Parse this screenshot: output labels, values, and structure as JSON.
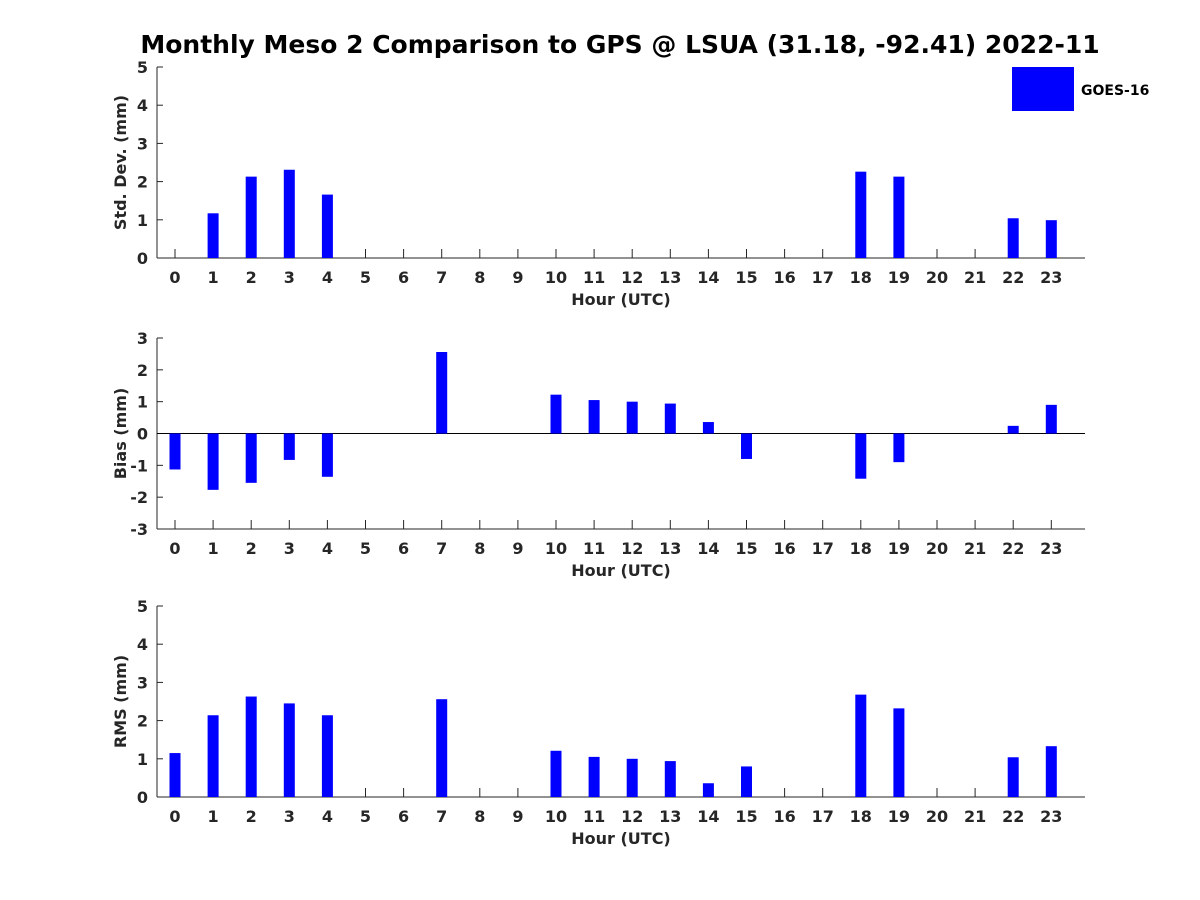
{
  "figure_title": "Monthly Meso 2 Comparison to GPS @ LSUA (31.18, -92.41) 2022-11",
  "legend": {
    "label": "GOES-16",
    "color": "#0000ff"
  },
  "chart_data": [
    {
      "type": "bar",
      "title": "Monthly Meso 2 Comparison to GPS @ LSUA (31.18, -92.41) 2022-11",
      "xlabel": "Hour (UTC)",
      "ylabel": "Std. Dev. (mm)",
      "categories": [
        "0",
        "1",
        "2",
        "3",
        "4",
        "5",
        "6",
        "7",
        "8",
        "9",
        "10",
        "11",
        "12",
        "13",
        "14",
        "15",
        "16",
        "17",
        "18",
        "19",
        "20",
        "21",
        "22",
        "23"
      ],
      "series": [
        {
          "name": "GOES-16",
          "color": "#0000ff",
          "values": [
            0,
            1.17,
            2.13,
            2.31,
            1.66,
            0,
            0,
            0,
            0,
            0,
            0,
            0,
            0,
            0,
            0,
            0,
            0,
            0,
            2.26,
            2.13,
            0,
            0,
            1.04,
            0.99
          ]
        }
      ],
      "ylim": [
        0,
        5
      ],
      "yticks": [
        "0",
        "1",
        "2",
        "3",
        "4",
        "5"
      ],
      "grid": false,
      "legend_position": "top-right"
    },
    {
      "type": "bar",
      "title": "",
      "xlabel": "Hour (UTC)",
      "ylabel": "Bias (mm)",
      "categories": [
        "0",
        "1",
        "2",
        "3",
        "4",
        "5",
        "6",
        "7",
        "8",
        "9",
        "10",
        "11",
        "12",
        "13",
        "14",
        "15",
        "16",
        "17",
        "18",
        "19",
        "20",
        "21",
        "22",
        "23"
      ],
      "series": [
        {
          "name": "GOES-16",
          "color": "#0000ff",
          "values": [
            -1.13,
            -1.77,
            -1.55,
            -0.83,
            -1.36,
            0,
            0,
            2.56,
            0,
            0,
            1.22,
            1.05,
            1.0,
            0.94,
            0.36,
            -0.8,
            0,
            0,
            -1.42,
            -0.9,
            0,
            0,
            0.24,
            0.9
          ]
        }
      ],
      "ylim": [
        -3,
        3
      ],
      "yticks": [
        "-3",
        "-2",
        "-1",
        "0",
        "1",
        "2",
        "3"
      ],
      "zero_line": true,
      "grid": false
    },
    {
      "type": "bar",
      "title": "",
      "xlabel": "Hour (UTC)",
      "ylabel": "RMS (mm)",
      "categories": [
        "0",
        "1",
        "2",
        "3",
        "4",
        "5",
        "6",
        "7",
        "8",
        "9",
        "10",
        "11",
        "12",
        "13",
        "14",
        "15",
        "16",
        "17",
        "18",
        "19",
        "20",
        "21",
        "22",
        "23"
      ],
      "series": [
        {
          "name": "GOES-16",
          "color": "#0000ff",
          "values": [
            1.15,
            2.14,
            2.63,
            2.45,
            2.14,
            0,
            0,
            2.56,
            0,
            0,
            1.21,
            1.05,
            1.0,
            0.94,
            0.36,
            0.8,
            0,
            0,
            2.68,
            2.32,
            0,
            0,
            1.04,
            1.33
          ]
        }
      ],
      "ylim": [
        0,
        5
      ],
      "yticks": [
        "0",
        "1",
        "2",
        "3",
        "4",
        "5"
      ],
      "grid": false
    }
  ]
}
